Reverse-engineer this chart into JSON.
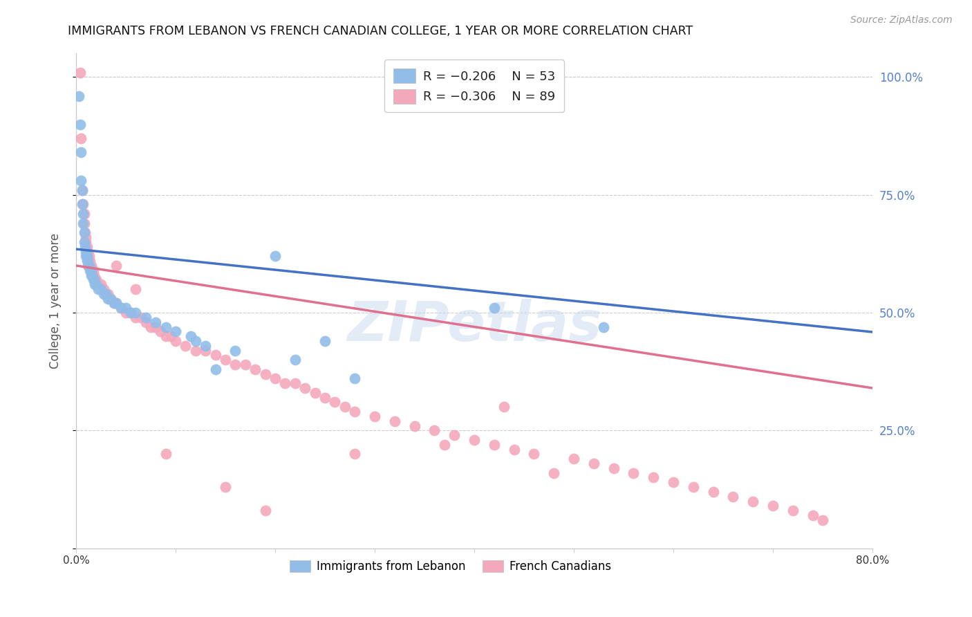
{
  "title": "IMMIGRANTS FROM LEBANON VS FRENCH CANADIAN COLLEGE, 1 YEAR OR MORE CORRELATION CHART",
  "source": "Source: ZipAtlas.com",
  "ylabel": "College, 1 year or more",
  "xlim": [
    0.0,
    0.8
  ],
  "ylim": [
    0.0,
    1.05
  ],
  "grid_color": "#cccccc",
  "background_color": "#ffffff",
  "blue_color": "#91bde8",
  "pink_color": "#f4a8bc",
  "blue_line_color": "#4472c4",
  "pink_line_color": "#e07090",
  "dashed_line_color": "#aaaacc",
  "right_axis_color": "#5580cc",
  "watermark": "ZIPetlas",
  "legend_r_blue": "R = −0.206",
  "legend_n_blue": "N = 53",
  "legend_r_pink": "R = −0.306",
  "legend_n_pink": "N = 89",
  "blue_intercept": 0.635,
  "blue_slope": -0.22,
  "pink_intercept": 0.6,
  "pink_slope": -0.325,
  "blue_x": [
    0.003,
    0.004,
    0.005,
    0.005,
    0.006,
    0.006,
    0.007,
    0.007,
    0.008,
    0.008,
    0.009,
    0.01,
    0.01,
    0.011,
    0.011,
    0.012,
    0.012,
    0.013,
    0.014,
    0.015,
    0.015,
    0.016,
    0.017,
    0.018,
    0.019,
    0.02,
    0.022,
    0.025,
    0.028,
    0.03,
    0.032,
    0.035,
    0.038,
    0.04,
    0.045,
    0.05,
    0.055,
    0.06,
    0.07,
    0.08,
    0.09,
    0.1,
    0.115,
    0.12,
    0.13,
    0.14,
    0.16,
    0.2,
    0.22,
    0.25,
    0.28,
    0.42,
    0.53
  ],
  "blue_y": [
    0.96,
    0.9,
    0.84,
    0.78,
    0.76,
    0.73,
    0.71,
    0.69,
    0.67,
    0.65,
    0.64,
    0.63,
    0.62,
    0.62,
    0.61,
    0.61,
    0.6,
    0.6,
    0.59,
    0.59,
    0.58,
    0.58,
    0.57,
    0.57,
    0.56,
    0.56,
    0.55,
    0.55,
    0.54,
    0.54,
    0.53,
    0.53,
    0.52,
    0.52,
    0.51,
    0.51,
    0.5,
    0.5,
    0.49,
    0.48,
    0.47,
    0.46,
    0.45,
    0.44,
    0.43,
    0.38,
    0.42,
    0.62,
    0.4,
    0.44,
    0.36,
    0.51,
    0.47
  ],
  "pink_x": [
    0.004,
    0.005,
    0.006,
    0.007,
    0.008,
    0.008,
    0.009,
    0.01,
    0.01,
    0.011,
    0.012,
    0.013,
    0.014,
    0.015,
    0.016,
    0.017,
    0.018,
    0.019,
    0.02,
    0.022,
    0.025,
    0.028,
    0.03,
    0.032,
    0.035,
    0.038,
    0.04,
    0.045,
    0.05,
    0.055,
    0.06,
    0.065,
    0.07,
    0.075,
    0.08,
    0.085,
    0.09,
    0.095,
    0.1,
    0.11,
    0.12,
    0.13,
    0.14,
    0.15,
    0.16,
    0.17,
    0.18,
    0.19,
    0.2,
    0.21,
    0.22,
    0.23,
    0.24,
    0.25,
    0.26,
    0.27,
    0.28,
    0.3,
    0.32,
    0.34,
    0.36,
    0.38,
    0.4,
    0.42,
    0.44,
    0.46,
    0.5,
    0.52,
    0.54,
    0.56,
    0.58,
    0.6,
    0.62,
    0.64,
    0.66,
    0.68,
    0.7,
    0.72,
    0.74,
    0.75,
    0.37,
    0.43,
    0.48,
    0.28,
    0.15,
    0.19,
    0.09,
    0.06,
    0.04
  ],
  "pink_y": [
    1.01,
    0.87,
    0.76,
    0.73,
    0.71,
    0.69,
    0.67,
    0.66,
    0.65,
    0.64,
    0.63,
    0.62,
    0.61,
    0.6,
    0.59,
    0.59,
    0.58,
    0.57,
    0.57,
    0.56,
    0.56,
    0.55,
    0.54,
    0.54,
    0.53,
    0.52,
    0.52,
    0.51,
    0.5,
    0.5,
    0.49,
    0.49,
    0.48,
    0.47,
    0.47,
    0.46,
    0.45,
    0.45,
    0.44,
    0.43,
    0.42,
    0.42,
    0.41,
    0.4,
    0.39,
    0.39,
    0.38,
    0.37,
    0.36,
    0.35,
    0.35,
    0.34,
    0.33,
    0.32,
    0.31,
    0.3,
    0.29,
    0.28,
    0.27,
    0.26,
    0.25,
    0.24,
    0.23,
    0.22,
    0.21,
    0.2,
    0.19,
    0.18,
    0.17,
    0.16,
    0.15,
    0.14,
    0.13,
    0.12,
    0.11,
    0.1,
    0.09,
    0.08,
    0.07,
    0.06,
    0.22,
    0.3,
    0.16,
    0.2,
    0.13,
    0.08,
    0.2,
    0.55,
    0.6
  ]
}
